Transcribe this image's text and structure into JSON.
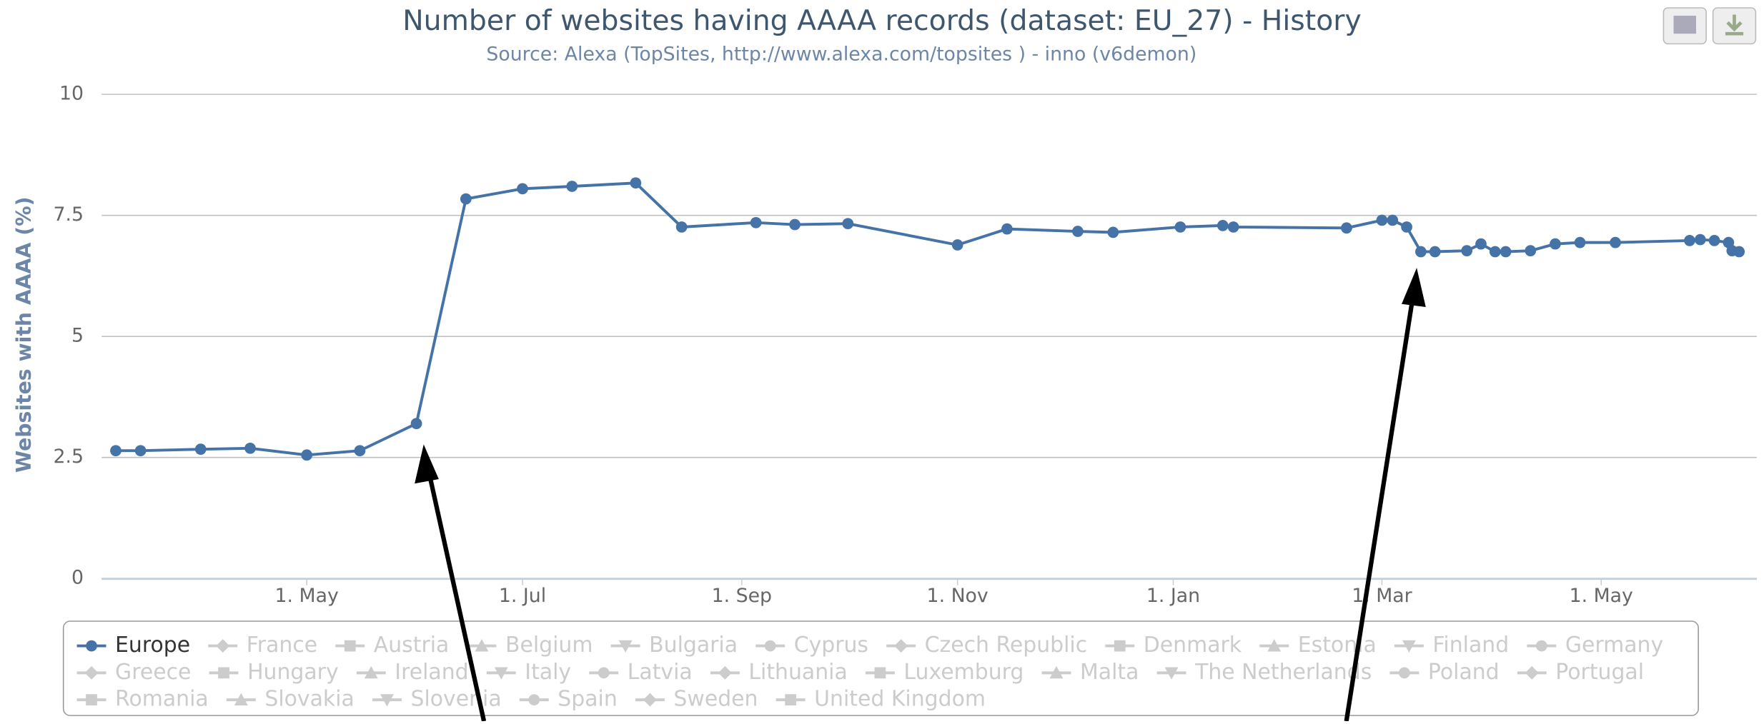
{
  "chart_data": {
    "type": "line",
    "title": "Number of websites having AAAA records (dataset: EU_27) - History",
    "subtitle": "Source: Alexa (TopSites, http://www.alexa.com/topsites ) - inno (v6demon)",
    "y_label": "Websites with AAAA (%)",
    "xlim": [
      62,
      530
    ],
    "xticks": [
      {
        "value": 120,
        "label": "1. May"
      },
      {
        "value": 181,
        "label": "1. Jul"
      },
      {
        "value": 243,
        "label": "1. Sep"
      },
      {
        "value": 304,
        "label": "1. Nov"
      },
      {
        "value": 365,
        "label": "1. Jan"
      },
      {
        "value": 424,
        "label": "1. Mar"
      },
      {
        "value": 486,
        "label": "1. May"
      }
    ],
    "ylim": [
      0,
      10
    ],
    "yticks": [
      0,
      2.5,
      5,
      7.5,
      10
    ],
    "grid": true,
    "x": [
      66,
      73,
      90,
      104,
      120,
      135,
      151,
      165,
      181,
      195,
      213,
      226,
      247,
      258,
      273,
      304,
      318,
      338,
      348,
      367,
      379,
      382,
      414,
      424,
      427,
      431,
      435,
      439,
      448,
      452,
      456,
      459,
      466,
      473,
      480,
      490,
      511,
      514,
      518,
      522,
      523,
      525
    ],
    "series": [
      {
        "name": "Europe",
        "color": "#4572a7",
        "values": [
          2.64,
          2.64,
          2.67,
          2.69,
          2.55,
          2.64,
          3.2,
          7.84,
          8.05,
          8.1,
          8.17,
          7.26,
          7.35,
          7.31,
          7.33,
          6.89,
          7.22,
          7.17,
          7.15,
          7.26,
          7.29,
          7.26,
          7.24,
          7.4,
          7.4,
          7.26,
          6.75,
          6.75,
          6.77,
          6.91,
          6.75,
          6.75,
          6.77,
          6.91,
          6.94,
          6.94,
          6.98,
          7.0,
          6.98,
          6.94,
          6.77,
          6.75
        ]
      }
    ],
    "legend_hidden": [
      "France",
      "Austria",
      "Belgium",
      "Bulgaria",
      "Cyprus",
      "Czech Republic",
      "Denmark",
      "Estonia",
      "Finland",
      "Germany",
      "Greece",
      "Hungary",
      "Ireland",
      "Italy",
      "Latvia",
      "Lithuania",
      "Luxemburg",
      "Malta",
      "The Netherlands",
      "Poland",
      "Portugal",
      "Romania",
      "Slovakia",
      "Slovenia",
      "Spain",
      "Sweden",
      "United Kingdom"
    ],
    "hidden_color": "#cccccc"
  }
}
